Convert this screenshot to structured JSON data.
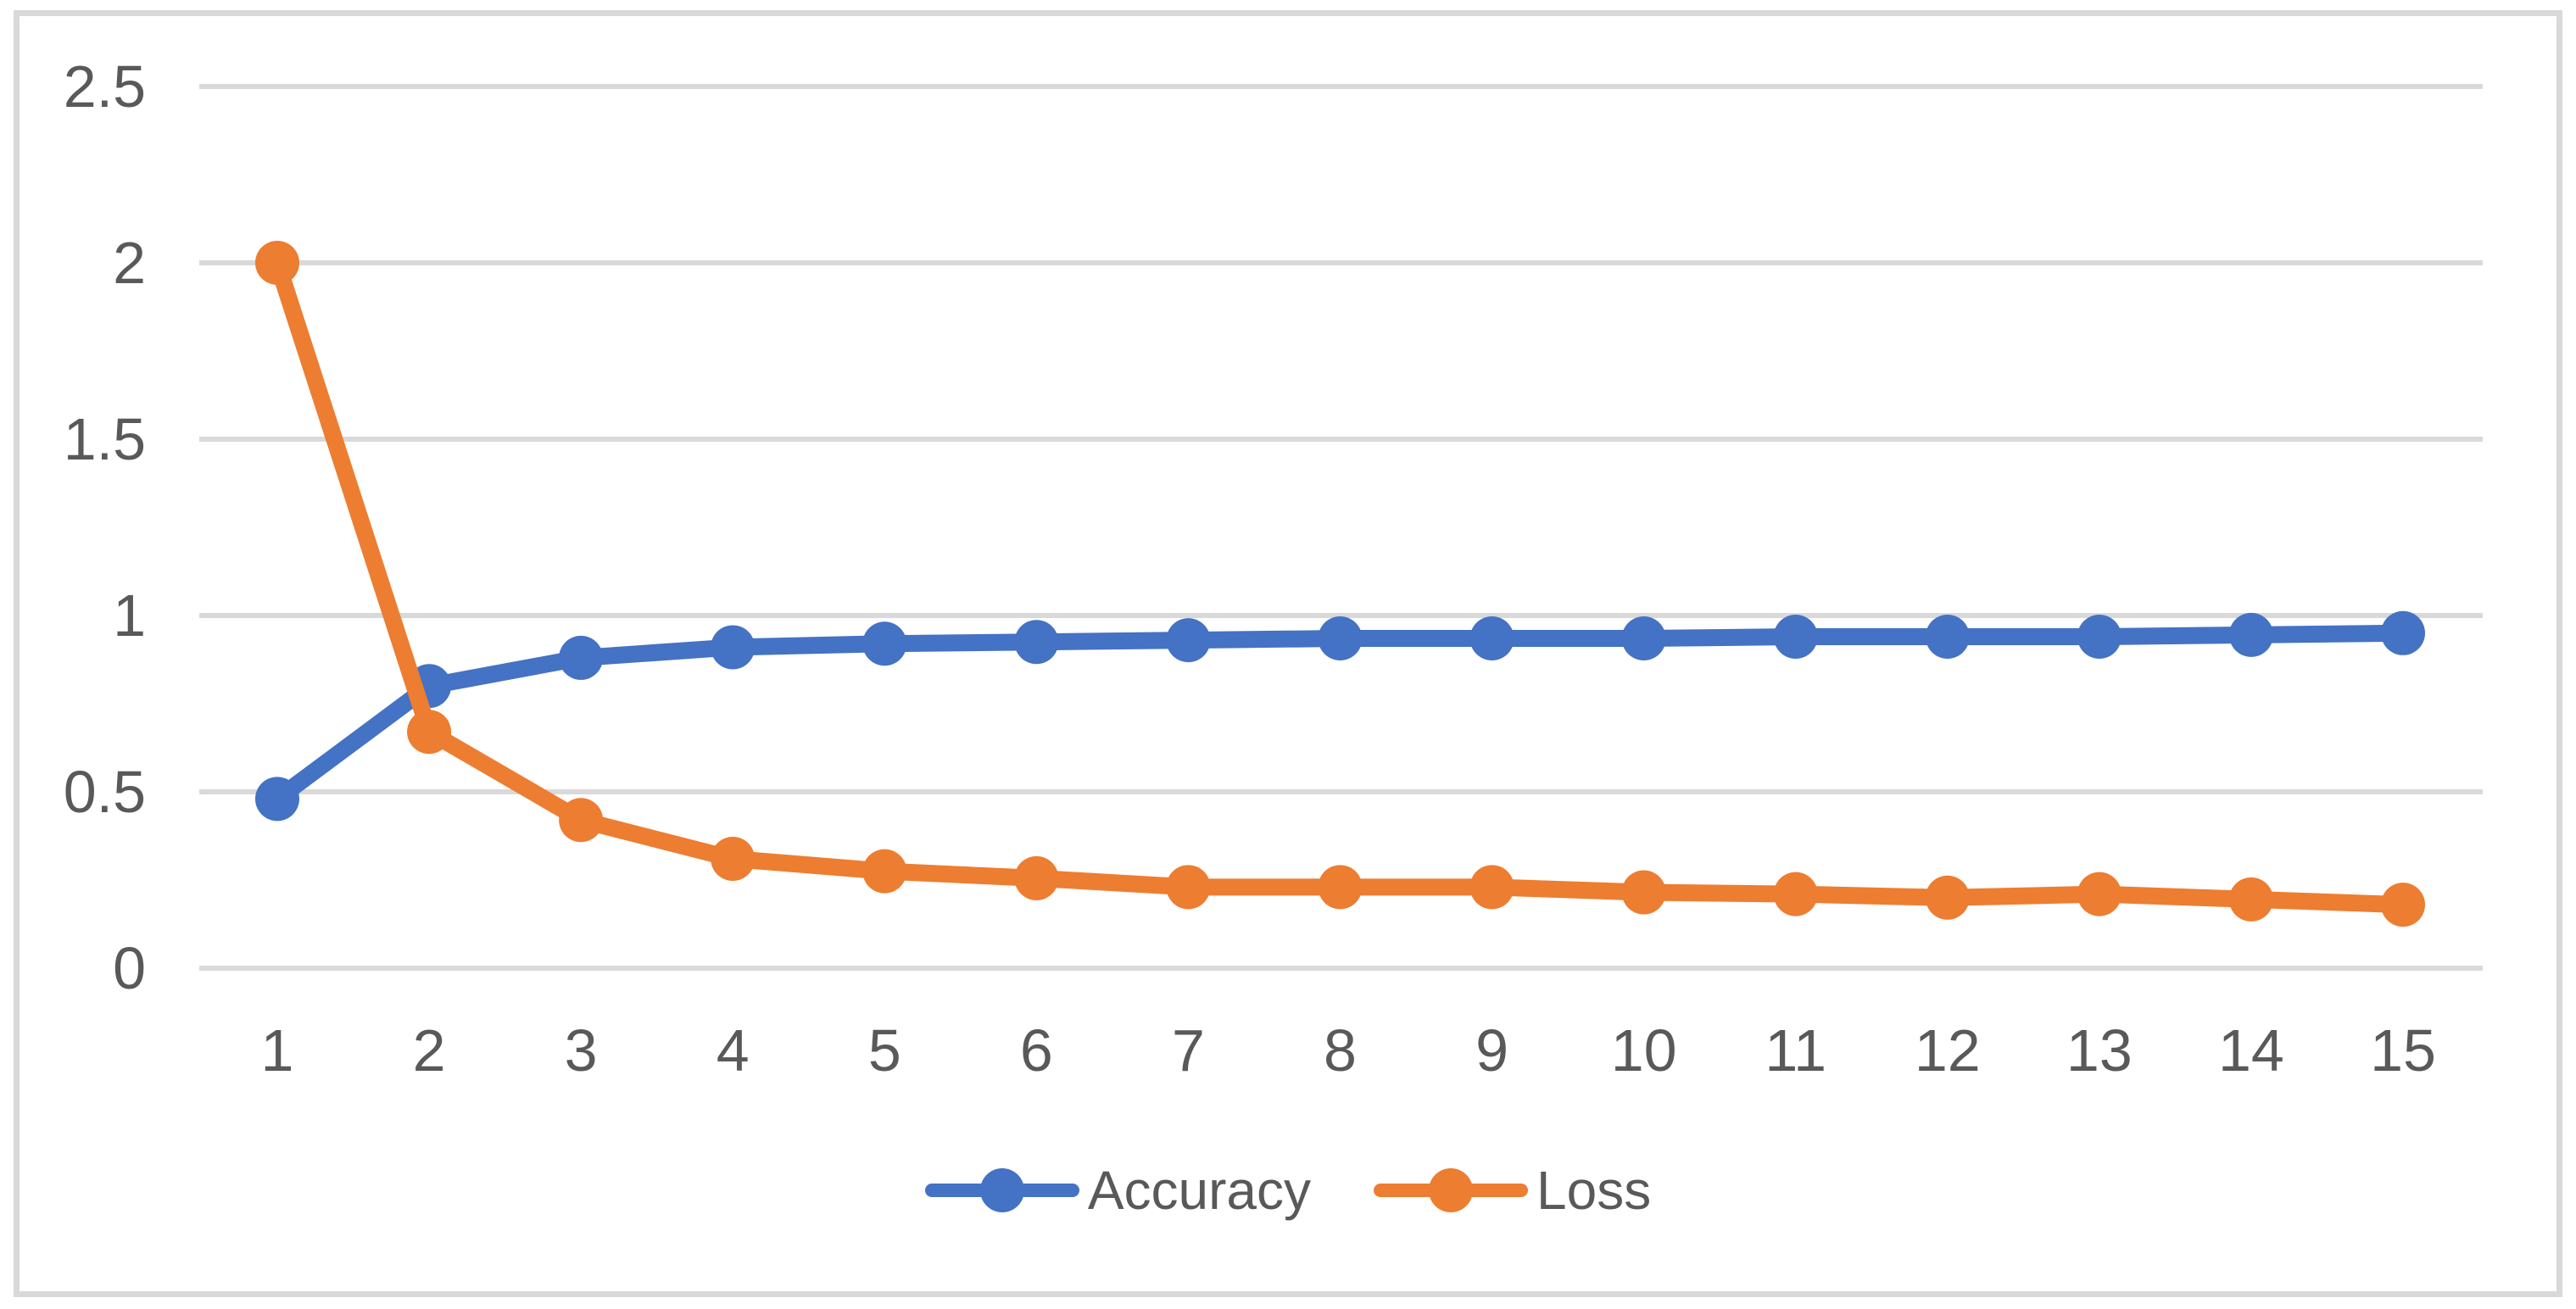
{
  "chart_data": {
    "type": "line",
    "title": "",
    "xlabel": "",
    "ylabel": "",
    "x": [
      1,
      2,
      3,
      4,
      5,
      6,
      7,
      8,
      9,
      10,
      11,
      12,
      13,
      14,
      15
    ],
    "series": [
      {
        "name": "Accuracy",
        "color": "#4472C4",
        "values": [
          0.48,
          0.8,
          0.88,
          0.91,
          0.92,
          0.925,
          0.93,
          0.935,
          0.935,
          0.935,
          0.94,
          0.94,
          0.94,
          0.945,
          0.95
        ]
      },
      {
        "name": "Loss",
        "color": "#ED7D31",
        "values": [
          2.0,
          0.67,
          0.42,
          0.31,
          0.275,
          0.255,
          0.23,
          0.23,
          0.23,
          0.215,
          0.21,
          0.2,
          0.21,
          0.195,
          0.18
        ]
      }
    ],
    "ylim": [
      0,
      2.5
    ],
    "yticks": [
      "0",
      "0.5",
      "1",
      "1.5",
      "2",
      "2.5"
    ],
    "xticks": [
      "1",
      "2",
      "3",
      "4",
      "5",
      "6",
      "7",
      "8",
      "9",
      "10",
      "11",
      "12",
      "13",
      "14",
      "15"
    ],
    "grid": true,
    "legend_position": "bottom",
    "colors": {
      "gridline": "#D9D9D9",
      "axis_text": "#595959",
      "border": "#D9D9D9",
      "background": "#FFFFFF"
    }
  }
}
